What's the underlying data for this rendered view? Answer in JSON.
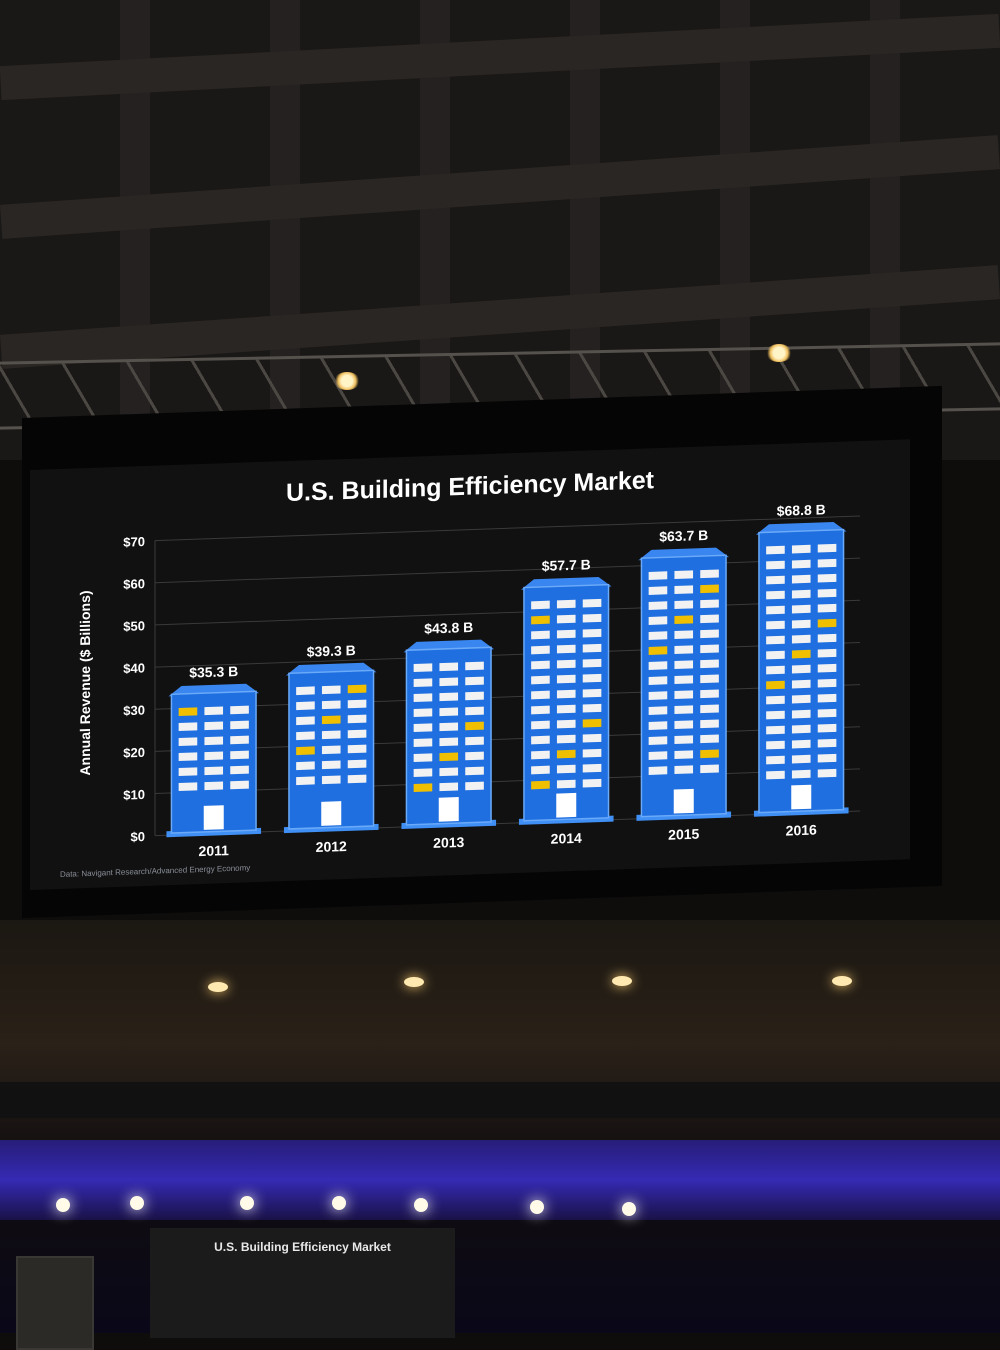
{
  "chart_data": {
    "type": "bar",
    "title": "U.S. Building Efficiency Market",
    "ylabel": "Annual Revenue ($ Billions)",
    "xlabel": "",
    "categories": [
      "2011",
      "2012",
      "2013",
      "2014",
      "2015",
      "2016"
    ],
    "values": [
      35.3,
      39.3,
      43.8,
      57.7,
      63.7,
      68.8
    ],
    "data_labels": [
      "$35.3 B",
      "$39.3 B",
      "$43.8 B",
      "$57.7 B",
      "$63.7 B",
      "$68.8 B"
    ],
    "yticks": [
      "$0",
      "$10",
      "$20",
      "$30",
      "$40",
      "$50",
      "$60",
      "$70"
    ],
    "ylim": [
      0,
      70
    ],
    "grid": true,
    "source": "Data: Navigant Research/Advanced Energy Economy",
    "bar_style": "building",
    "colors": {
      "background": "#111111",
      "bar": "#1f6fe0",
      "window": "#f2f2f2",
      "lit_window": "#f0c000",
      "text": "#ffffff",
      "grid": "#3a3a3a"
    }
  },
  "mini_screen": {
    "title": "U.S. Building Efficiency Market"
  }
}
